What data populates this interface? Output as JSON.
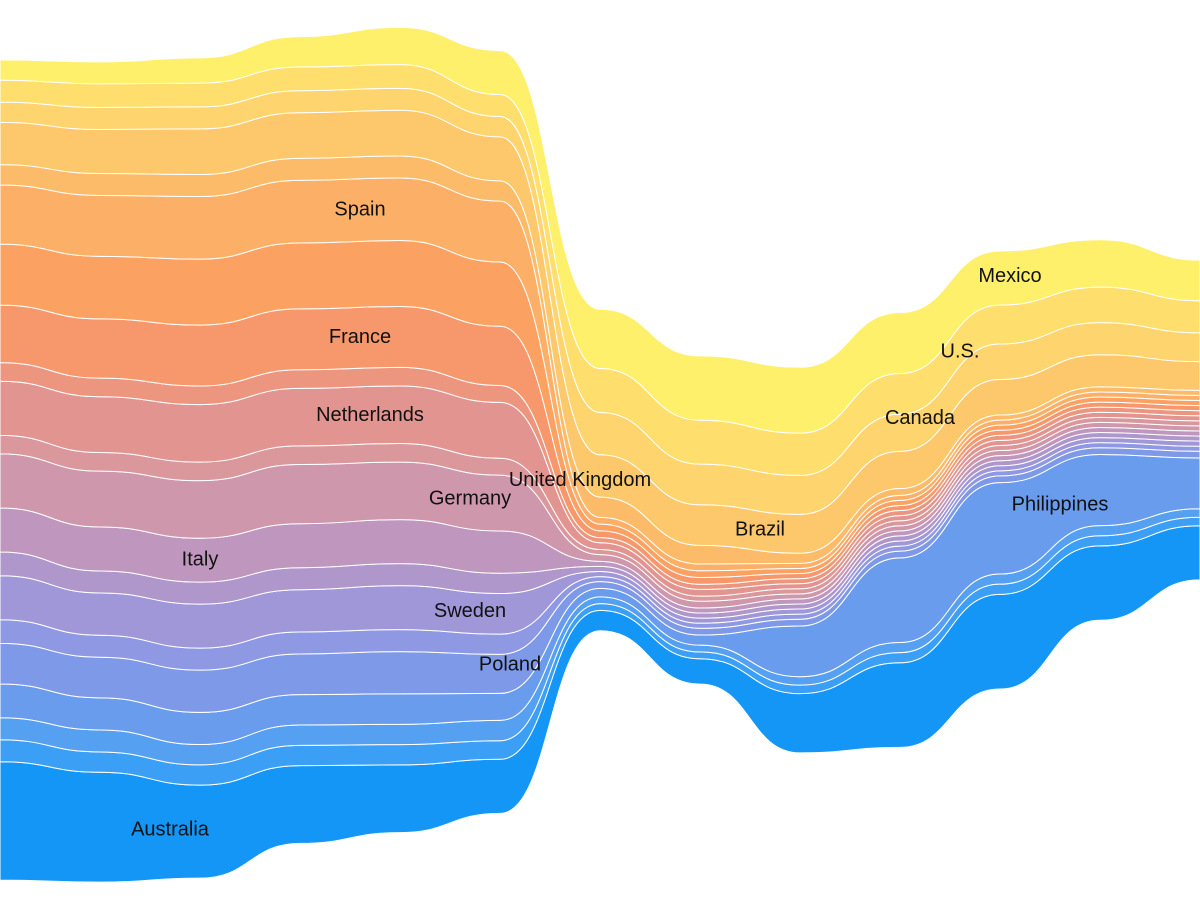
{
  "chart_data": {
    "type": "area",
    "subtype": "streamgraph",
    "axes_visible": false,
    "grid": false,
    "legend": "inline labels on streams",
    "x": [
      0,
      1,
      2,
      3,
      4,
      5,
      6,
      7,
      8,
      9,
      10,
      11,
      12
    ],
    "series": [
      {
        "name": "Australia",
        "color": "#1496f6",
        "values": [
          7.0,
          6.5,
          5.5,
          4.6,
          4.0,
          3.2,
          1.2,
          1.5,
          3.5,
          5.0,
          5.6,
          4.4,
          3.2
        ]
      },
      {
        "name": "",
        "color": "#3ba0f5",
        "values": [
          1.3,
          1.2,
          1.2,
          1.2,
          1.2,
          1.1,
          0.4,
          0.4,
          0.5,
          0.6,
          0.6,
          0.6,
          0.5
        ]
      },
      {
        "name": "",
        "color": "#56a0f2",
        "values": [
          1.3,
          1.3,
          1.2,
          1.2,
          1.2,
          1.2,
          0.4,
          0.4,
          0.5,
          0.6,
          0.6,
          0.6,
          0.5
        ]
      },
      {
        "name": "Philippines",
        "color": "#6a9cee",
        "values": [
          2.0,
          1.9,
          1.9,
          1.8,
          1.8,
          1.6,
          0.5,
          0.6,
          3.0,
          5.0,
          5.4,
          4.2,
          3.0
        ]
      },
      {
        "name": "Poland",
        "color": "#7e99e8",
        "values": [
          2.4,
          2.4,
          2.5,
          2.4,
          2.5,
          2.3,
          0.4,
          0.4,
          0.4,
          0.4,
          0.4,
          0.4,
          0.4
        ]
      },
      {
        "name": "",
        "color": "#8f98e2",
        "values": [
          1.4,
          1.3,
          1.3,
          1.3,
          1.3,
          1.2,
          0.3,
          0.3,
          0.3,
          0.3,
          0.3,
          0.3,
          0.3
        ]
      },
      {
        "name": "Sweden",
        "color": "#a097d8",
        "values": [
          2.6,
          2.5,
          2.6,
          2.5,
          2.6,
          2.4,
          0.3,
          0.3,
          0.3,
          0.3,
          0.3,
          0.3,
          0.3
        ]
      },
      {
        "name": "",
        "color": "#b097cb",
        "values": [
          1.4,
          1.3,
          1.3,
          1.3,
          1.3,
          1.2,
          0.3,
          0.3,
          0.3,
          0.3,
          0.3,
          0.3,
          0.3
        ]
      },
      {
        "name": "Italy",
        "color": "#bf97be",
        "values": [
          2.6,
          2.6,
          2.6,
          2.6,
          2.6,
          2.5,
          0.3,
          0.3,
          0.3,
          0.3,
          0.3,
          0.3,
          0.3
        ]
      },
      {
        "name": "Germany",
        "color": "#cf97ab",
        "values": [
          3.2,
          3.3,
          3.4,
          3.5,
          3.4,
          3.3,
          0.4,
          0.4,
          0.3,
          0.3,
          0.3,
          0.3,
          0.3
        ]
      },
      {
        "name": "",
        "color": "#da979c",
        "values": [
          1.1,
          1.1,
          1.1,
          1.1,
          1.1,
          1.0,
          0.3,
          0.3,
          0.3,
          0.3,
          0.3,
          0.3,
          0.3
        ]
      },
      {
        "name": "Netherlands",
        "color": "#e29590",
        "values": [
          3.2,
          3.3,
          3.4,
          3.4,
          3.4,
          3.3,
          0.4,
          0.4,
          0.3,
          0.3,
          0.3,
          0.3,
          0.3
        ]
      },
      {
        "name": "",
        "color": "#ec967f",
        "values": [
          1.1,
          1.1,
          1.1,
          1.1,
          1.1,
          1.0,
          0.3,
          0.3,
          0.3,
          0.3,
          0.3,
          0.3,
          0.3
        ]
      },
      {
        "name": "France",
        "color": "#f6986b",
        "values": [
          3.4,
          3.5,
          3.6,
          3.6,
          3.6,
          3.5,
          0.4,
          0.4,
          0.3,
          0.3,
          0.3,
          0.3,
          0.3
        ]
      },
      {
        "name": "United Kingdom",
        "color": "#fba262",
        "values": [
          3.6,
          3.7,
          3.9,
          3.9,
          3.9,
          3.8,
          0.4,
          0.4,
          0.3,
          0.3,
          0.3,
          0.3,
          0.3
        ]
      },
      {
        "name": "Spain",
        "color": "#fcaf66",
        "values": [
          3.5,
          3.6,
          3.7,
          3.7,
          3.7,
          3.6,
          0.4,
          0.4,
          0.3,
          0.3,
          0.3,
          0.3,
          0.3
        ]
      },
      {
        "name": "",
        "color": "#fcbb69",
        "values": [
          1.2,
          1.3,
          1.3,
          1.3,
          1.3,
          1.2,
          1.2,
          1.1,
          0.6,
          0.4,
          0.3,
          0.3,
          0.3
        ]
      },
      {
        "name": "Brazil",
        "color": "#fdc86b",
        "values": [
          2.5,
          2.6,
          2.7,
          2.7,
          2.7,
          2.6,
          2.5,
          2.4,
          2.3,
          2.2,
          2.1,
          1.9,
          1.7
        ]
      },
      {
        "name": "Canada",
        "color": "#fdd46d",
        "values": [
          1.2,
          1.3,
          1.3,
          1.3,
          1.3,
          1.2,
          2.5,
          2.4,
          2.3,
          2.2,
          2.1,
          1.9,
          1.7
        ]
      },
      {
        "name": "U.S.",
        "color": "#fedf6e",
        "values": [
          1.3,
          1.4,
          1.4,
          1.4,
          1.4,
          1.3,
          2.6,
          2.6,
          2.5,
          2.4,
          2.3,
          2.1,
          1.9
        ]
      },
      {
        "name": "Mexico",
        "color": "#fff06b",
        "values": [
          1.2,
          1.3,
          1.5,
          1.8,
          2.2,
          2.6,
          3.5,
          3.8,
          3.9,
          3.6,
          3.2,
          2.8,
          2.4
        ]
      }
    ],
    "labels": [
      {
        "text": "Spain",
        "series": 15,
        "x": 3.6
      },
      {
        "text": "United Kingdom",
        "series": 14,
        "x": 5.8
      },
      {
        "text": "Brazil",
        "series": 17,
        "x": 7.6
      },
      {
        "text": "Canada",
        "series": 18,
        "x": 9.2
      },
      {
        "text": "U.S.",
        "series": 19,
        "x": 9.6
      },
      {
        "text": "Mexico",
        "series": 20,
        "x": 10.1
      },
      {
        "text": "France",
        "series": 13,
        "x": 3.6
      },
      {
        "text": "Netherlands",
        "series": 11,
        "x": 3.7
      },
      {
        "text": "Germany",
        "series": 9,
        "x": 4.7
      },
      {
        "text": "Italy",
        "series": 8,
        "x": 2.0
      },
      {
        "text": "Sweden",
        "series": 6,
        "x": 4.7
      },
      {
        "text": "Poland",
        "series": 4,
        "x": 5.1
      },
      {
        "text": "Australia",
        "series": 0,
        "x": 1.7
      },
      {
        "text": "Philippines",
        "series": 3,
        "x": 10.6
      }
    ]
  }
}
